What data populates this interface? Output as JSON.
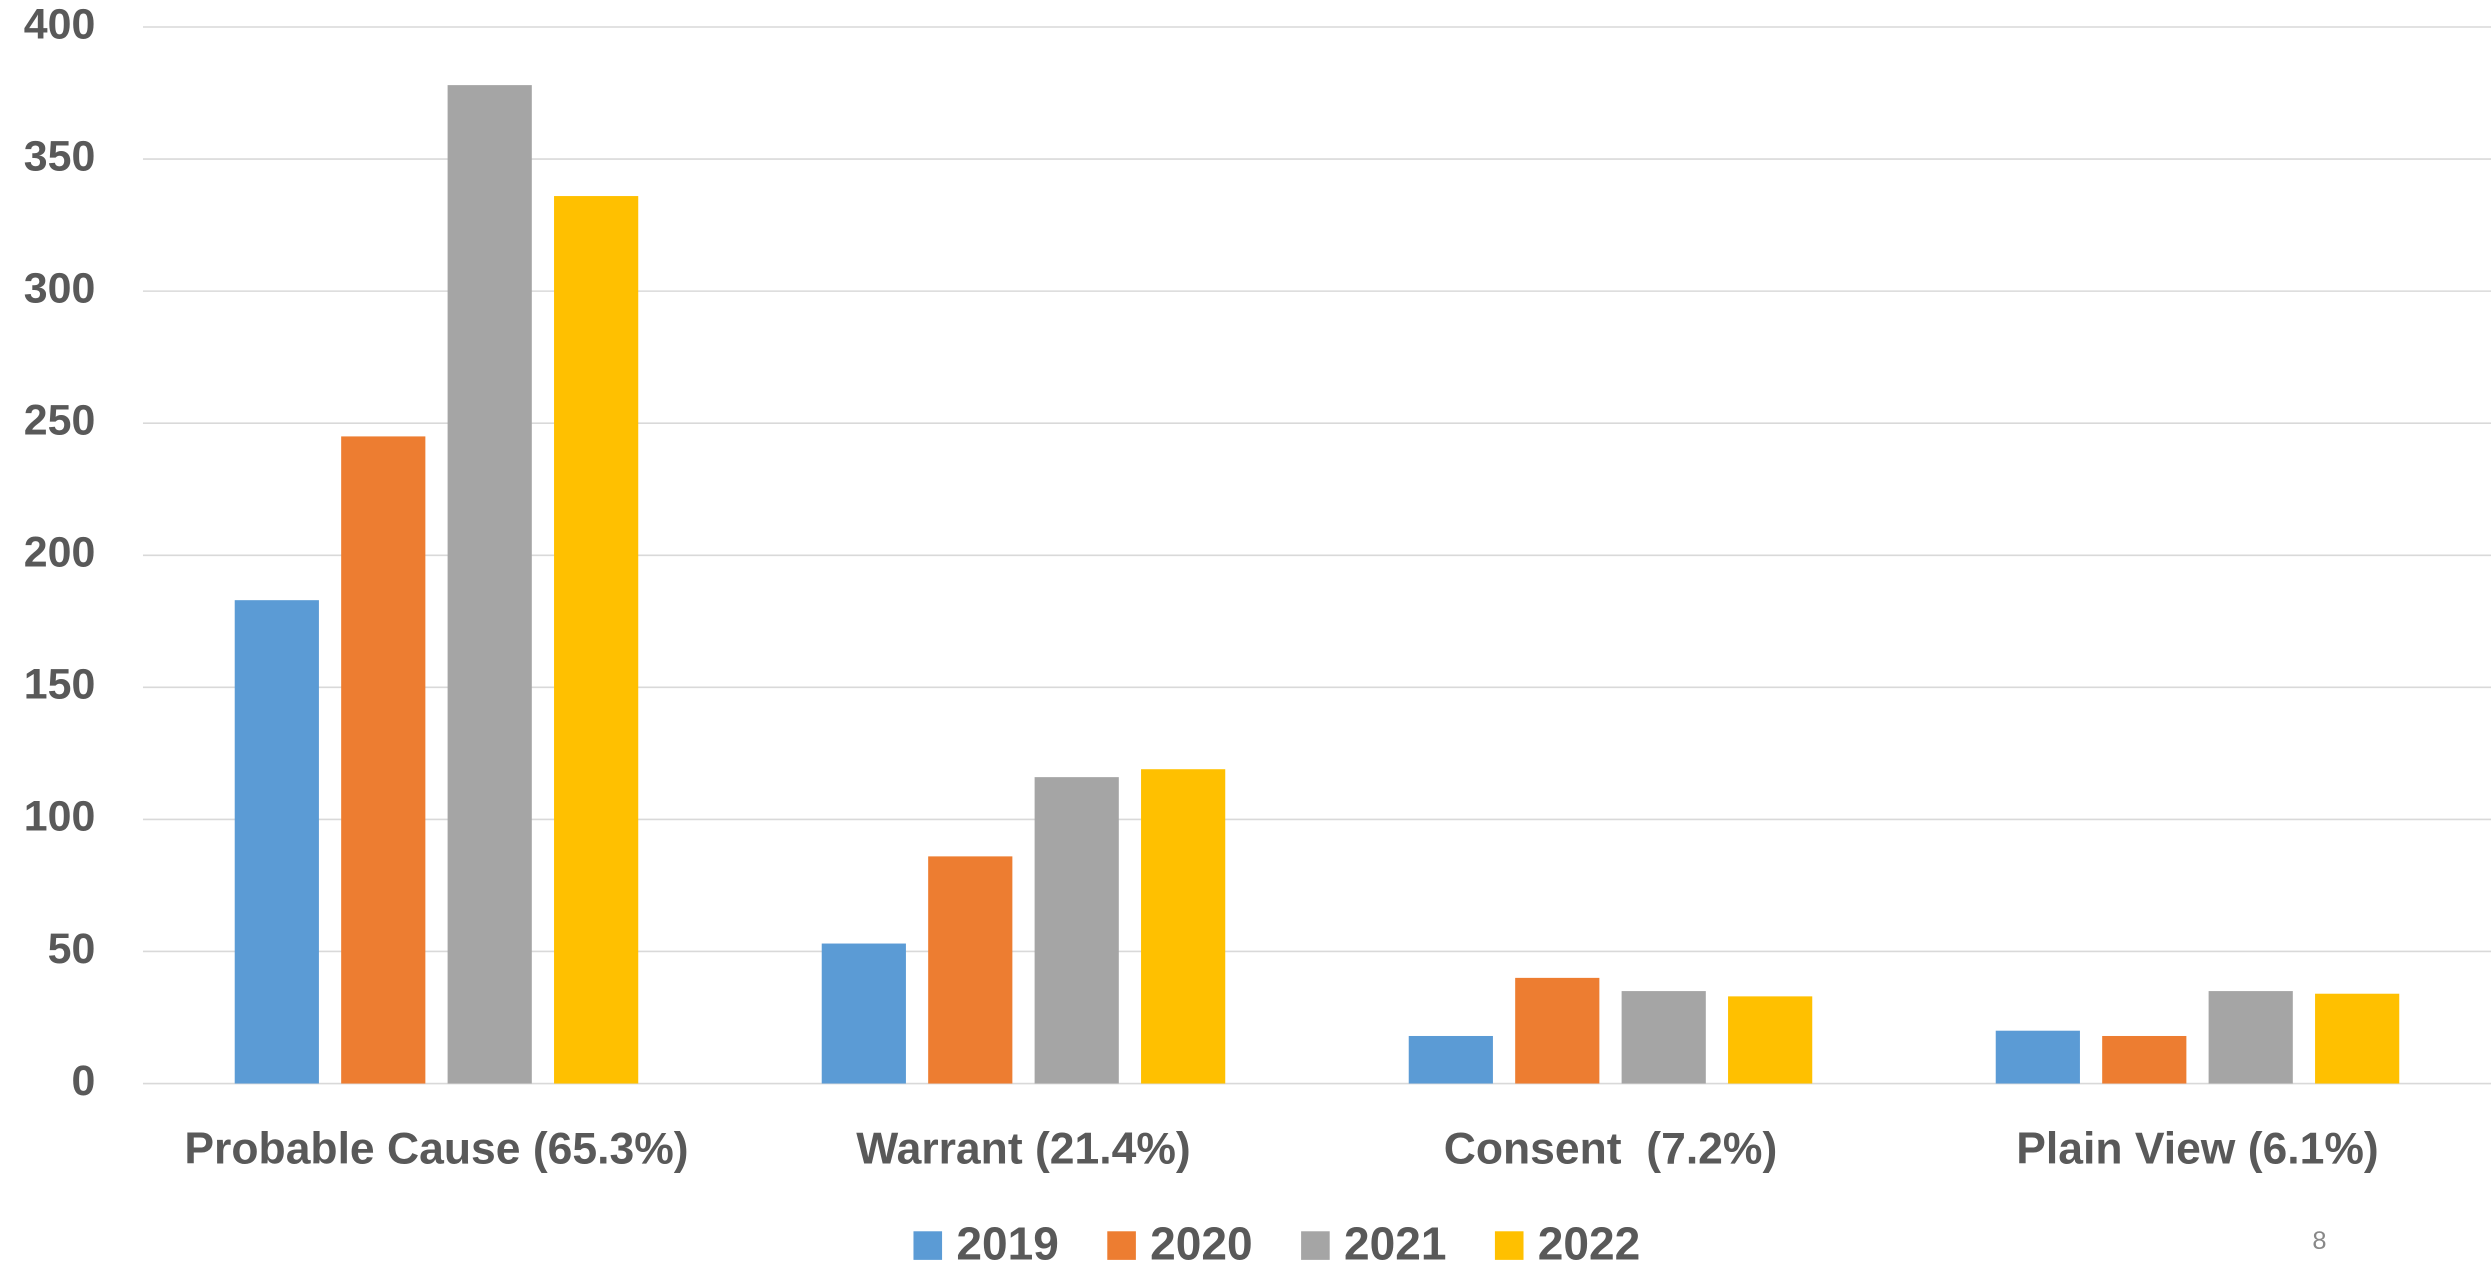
{
  "chart_data": {
    "type": "bar",
    "categories": [
      "Probable Cause (65.3%)",
      "Warrant (21.4%)",
      "Consent  (7.2%)",
      "Plain View (6.1%)"
    ],
    "series": [
      {
        "name": "2019",
        "color": "#5b9bd5",
        "values": [
          183,
          53,
          18,
          20
        ]
      },
      {
        "name": "2020",
        "color": "#ed7d31",
        "values": [
          245,
          86,
          40,
          18
        ]
      },
      {
        "name": "2021",
        "color": "#a5a5a5",
        "values": [
          378,
          116,
          35,
          35
        ]
      },
      {
        "name": "2022",
        "color": "#ffc000",
        "values": [
          336,
          119,
          33,
          34
        ]
      }
    ],
    "ylim": [
      0,
      400
    ],
    "yticks": [
      0,
      50,
      100,
      150,
      200,
      250,
      300,
      350,
      400
    ],
    "grid": true,
    "legend": "bottom",
    "page_number": "8"
  }
}
